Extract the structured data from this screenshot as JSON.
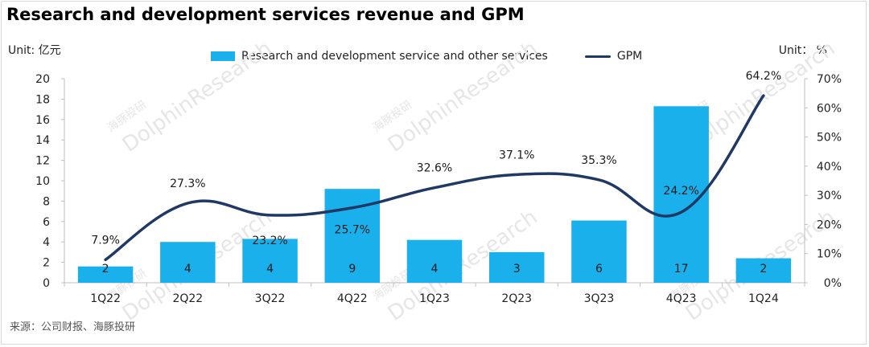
{
  "title": "Research and development services revenue and GPM",
  "unit_left": "Unit: 亿元",
  "unit_right": "Unit：  %",
  "source": "来源：公司财报、海豚投研",
  "watermark": {
    "en": "DolphinResearch",
    "cn": "海豚投研"
  },
  "colors": {
    "bar": "#1ab0ec",
    "line": "#1f3864"
  },
  "chart_data": {
    "type": "bar",
    "title": "Research and development services revenue and GPM",
    "categories": [
      "1Q22",
      "2Q22",
      "3Q22",
      "4Q22",
      "1Q23",
      "2Q23",
      "3Q23",
      "4Q23",
      "1Q24"
    ],
    "series": [
      {
        "name": "Research and development service and other services",
        "type": "bar",
        "axis": "left",
        "values": [
          1.6,
          4.0,
          4.3,
          9.2,
          4.2,
          3.0,
          6.1,
          17.3,
          2.4
        ],
        "labels": [
          "2",
          "4",
          "4",
          "9",
          "4",
          "3",
          "6",
          "17",
          "2"
        ]
      },
      {
        "name": "GPM",
        "type": "line",
        "axis": "right",
        "values": [
          7.9,
          27.3,
          23.2,
          25.7,
          32.6,
          37.1,
          35.3,
          24.2,
          64.2
        ],
        "labels": [
          "7.9%",
          "27.3%",
          "23.2%",
          "25.7%",
          "32.6%",
          "37.1%",
          "35.3%",
          "24.2%",
          "64.2%"
        ]
      }
    ],
    "y_left": {
      "min": 0,
      "max": 20,
      "ticks": [
        "0",
        "2",
        "4",
        "6",
        "8",
        "10",
        "12",
        "14",
        "16",
        "18",
        "20"
      ]
    },
    "y_right": {
      "min": 0,
      "max": 70,
      "ticks": [
        "0%",
        "10%",
        "20%",
        "30%",
        "40%",
        "50%",
        "60%",
        "70%"
      ]
    },
    "legend": "top-center",
    "grid": false
  }
}
